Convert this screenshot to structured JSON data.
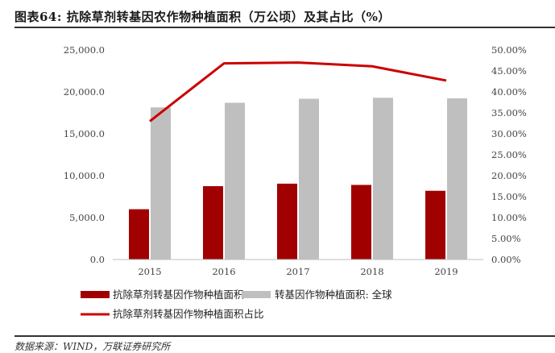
{
  "header": {
    "title": "图表64:  抗除草剂转基因农作物种植面积（万公顷）及其占比（%）",
    "source": "数据来源：WIND，万联证券研究所"
  },
  "colors": {
    "bar_primary": "#a00000",
    "bar_secondary": "#bfbfbf",
    "line": "#cc0000"
  },
  "chart_data": {
    "type": "bar",
    "categories": [
      "2015",
      "2016",
      "2017",
      "2018",
      "2019"
    ],
    "series": [
      {
        "name": "抗除草剂转基因作物种植面积",
        "kind": "bar",
        "axis": "left",
        "values": [
          6000,
          8750,
          9050,
          8900,
          8200
        ]
      },
      {
        "name": "转基因作物种植面积: 全球",
        "kind": "bar",
        "axis": "left",
        "values": [
          18150,
          18700,
          19180,
          19300,
          19230
        ]
      },
      {
        "name": "抗除草剂转基因作物种植面积占比",
        "kind": "line",
        "axis": "right",
        "values": [
          33.0,
          46.8,
          47.0,
          46.1,
          42.7
        ]
      }
    ],
    "y_left": {
      "min": 0,
      "max": 25000,
      "ticks": [
        "0.0",
        "5,000.0",
        "10,000.0",
        "15,000.0",
        "20,000.0",
        "25,000.0"
      ]
    },
    "y_right": {
      "min": 0,
      "max": 50,
      "ticks": [
        "0.00%",
        "5.00%",
        "10.00%",
        "15.00%",
        "20.00%",
        "25.00%",
        "30.00%",
        "35.00%",
        "40.00%",
        "45.00%",
        "50.00%"
      ]
    },
    "grid": false,
    "legend": "bottom"
  }
}
